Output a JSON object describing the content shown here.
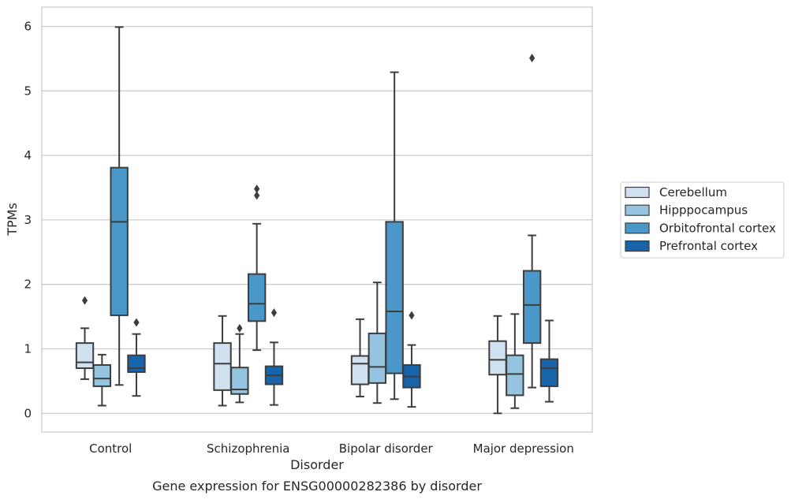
{
  "caption": "Gene expression for ENSG00000282386 by disorder",
  "chart_data": {
    "type": "box",
    "title": "",
    "xlabel": "Disorder",
    "ylabel": "TPMs",
    "ylim": [
      -0.29,
      6.3
    ],
    "yticks": [
      0,
      1,
      2,
      3,
      4,
      5,
      6
    ],
    "grid": "horizontal",
    "legend_position": "right",
    "categories": [
      "Control",
      "Schizophrenia",
      "Bipolar disorder",
      "Major depression"
    ],
    "series": [
      {
        "name": "Cerebellum",
        "color": "#d0e1f2",
        "boxes": [
          {
            "whisker_low": 0.53,
            "q1": 0.7,
            "median": 0.79,
            "q3": 1.09,
            "whisker_high": 1.32,
            "outliers": [
              1.75
            ]
          },
          {
            "whisker_low": 0.12,
            "q1": 0.36,
            "median": 0.77,
            "q3": 1.09,
            "whisker_high": 1.51,
            "outliers": []
          },
          {
            "whisker_low": 0.26,
            "q1": 0.45,
            "median": 0.77,
            "q3": 0.89,
            "whisker_high": 1.46,
            "outliers": []
          },
          {
            "whisker_low": 0.0,
            "q1": 0.6,
            "median": 0.83,
            "q3": 1.12,
            "whisker_high": 1.51,
            "outliers": []
          }
        ]
      },
      {
        "name": "Hipppocampus",
        "color": "#94c4df",
        "boxes": [
          {
            "whisker_low": 0.12,
            "q1": 0.42,
            "median": 0.54,
            "q3": 0.75,
            "whisker_high": 0.91,
            "outliers": []
          },
          {
            "whisker_low": 0.17,
            "q1": 0.3,
            "median": 0.37,
            "q3": 0.71,
            "whisker_high": 1.23,
            "outliers": [
              1.32
            ]
          },
          {
            "whisker_low": 0.16,
            "q1": 0.47,
            "median": 0.72,
            "q3": 1.24,
            "whisker_high": 2.03,
            "outliers": []
          },
          {
            "whisker_low": 0.08,
            "q1": 0.28,
            "median": 0.61,
            "q3": 0.9,
            "whisker_high": 1.54,
            "outliers": []
          }
        ]
      },
      {
        "name": "Orbitofrontal cortex",
        "color": "#4a98c9",
        "boxes": [
          {
            "whisker_low": 0.44,
            "q1": 1.52,
            "median": 2.97,
            "q3": 3.81,
            "whisker_high": 5.99,
            "outliers": []
          },
          {
            "whisker_low": 0.98,
            "q1": 1.43,
            "median": 1.7,
            "q3": 2.16,
            "whisker_high": 2.94,
            "outliers": [
              3.38,
              3.48
            ]
          },
          {
            "whisker_low": 0.22,
            "q1": 0.62,
            "median": 1.58,
            "q3": 2.97,
            "whisker_high": 5.29,
            "outliers": []
          },
          {
            "whisker_low": 0.4,
            "q1": 1.09,
            "median": 1.68,
            "q3": 2.21,
            "whisker_high": 2.76,
            "outliers": [
              5.51
            ]
          }
        ]
      },
      {
        "name": "Prefrontal cortex",
        "color": "#1764ab",
        "boxes": [
          {
            "whisker_low": 0.27,
            "q1": 0.64,
            "median": 0.7,
            "q3": 0.9,
            "whisker_high": 1.23,
            "outliers": [
              1.41
            ]
          },
          {
            "whisker_low": 0.13,
            "q1": 0.45,
            "median": 0.59,
            "q3": 0.73,
            "whisker_high": 1.1,
            "outliers": [
              1.56
            ]
          },
          {
            "whisker_low": 0.1,
            "q1": 0.4,
            "median": 0.57,
            "q3": 0.75,
            "whisker_high": 1.06,
            "outliers": [
              1.52
            ]
          },
          {
            "whisker_low": 0.18,
            "q1": 0.42,
            "median": 0.7,
            "q3": 0.84,
            "whisker_high": 1.44,
            "outliers": []
          }
        ]
      }
    ]
  }
}
